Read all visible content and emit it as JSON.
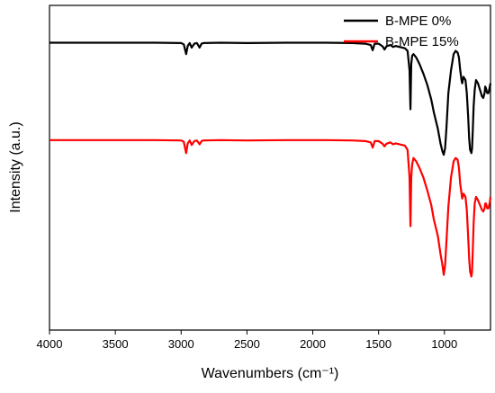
{
  "chart_data": {
    "type": "line",
    "title": "",
    "xlabel": "Wavenumbers (cm⁻¹)",
    "ylabel": "Intensity (a.u.)",
    "xlim": [
      4000,
      650
    ],
    "x_reversed": true,
    "ylim": [
      0,
      1
    ],
    "y_ticks_shown": false,
    "x_ticks": [
      4000,
      3500,
      3000,
      2500,
      2000,
      1500,
      1000
    ],
    "x_tick_labels": [
      "4000",
      "3500",
      "3000",
      "2500",
      "2000",
      "1500",
      "1000"
    ],
    "grid": false,
    "legend_position": "top-right",
    "series": [
      {
        "name": "B-MPE 0%",
        "color": "#000000",
        "x": [
          4000,
          3200,
          3000,
          2980,
          2962,
          2950,
          2935,
          2920,
          2900,
          2880,
          2860,
          2845,
          2830,
          2700,
          2500,
          2200,
          1900,
          1700,
          1600,
          1560,
          1545,
          1530,
          1500,
          1470,
          1455,
          1440,
          1410,
          1390,
          1370,
          1300,
          1280,
          1265,
          1258,
          1252,
          1245,
          1235,
          1215,
          1190,
          1160,
          1130,
          1100,
          1080,
          1050,
          1030,
          1015,
          1005,
          995,
          985,
          970,
          950,
          930,
          915,
          900,
          890,
          880,
          870,
          865,
          855,
          840,
          830,
          820,
          812,
          805,
          795,
          790,
          785,
          778,
          770,
          760,
          745,
          730,
          715,
          705,
          695,
          690,
          685,
          675,
          665,
          655,
          650
        ],
        "y": [
          0.885,
          0.885,
          0.884,
          0.88,
          0.85,
          0.875,
          0.884,
          0.87,
          0.882,
          0.884,
          0.87,
          0.882,
          0.884,
          0.885,
          0.884,
          0.885,
          0.885,
          0.884,
          0.882,
          0.878,
          0.862,
          0.882,
          0.882,
          0.874,
          0.864,
          0.874,
          0.878,
          0.872,
          0.875,
          0.868,
          0.86,
          0.8,
          0.68,
          0.82,
          0.845,
          0.85,
          0.84,
          0.82,
          0.79,
          0.755,
          0.71,
          0.67,
          0.62,
          0.575,
          0.55,
          0.54,
          0.56,
          0.62,
          0.73,
          0.8,
          0.85,
          0.86,
          0.855,
          0.84,
          0.8,
          0.77,
          0.76,
          0.78,
          0.77,
          0.73,
          0.66,
          0.59,
          0.555,
          0.545,
          0.56,
          0.61,
          0.69,
          0.74,
          0.77,
          0.76,
          0.74,
          0.72,
          0.715,
          0.73,
          0.75,
          0.745,
          0.73,
          0.73,
          0.75,
          0.76
        ]
      },
      {
        "name": "B-MPE 15%",
        "color": "#ff0000",
        "x": [
          4000,
          3200,
          3000,
          2980,
          2962,
          2950,
          2935,
          2920,
          2900,
          2880,
          2860,
          2845,
          2830,
          2700,
          2500,
          2200,
          1900,
          1700,
          1600,
          1560,
          1545,
          1530,
          1500,
          1470,
          1455,
          1440,
          1410,
          1390,
          1370,
          1300,
          1280,
          1265,
          1258,
          1252,
          1245,
          1235,
          1215,
          1190,
          1160,
          1130,
          1100,
          1080,
          1050,
          1030,
          1015,
          1005,
          995,
          985,
          970,
          950,
          930,
          915,
          900,
          890,
          880,
          870,
          865,
          855,
          840,
          830,
          820,
          812,
          805,
          795,
          790,
          785,
          778,
          770,
          760,
          745,
          730,
          715,
          705,
          695,
          690,
          685,
          675,
          665,
          655,
          650
        ],
        "y": [
          0.585,
          0.585,
          0.584,
          0.58,
          0.545,
          0.575,
          0.584,
          0.57,
          0.582,
          0.584,
          0.572,
          0.582,
          0.584,
          0.585,
          0.584,
          0.585,
          0.585,
          0.584,
          0.582,
          0.578,
          0.562,
          0.582,
          0.582,
          0.574,
          0.566,
          0.574,
          0.578,
          0.572,
          0.575,
          0.568,
          0.555,
          0.47,
          0.32,
          0.47,
          0.51,
          0.53,
          0.52,
          0.5,
          0.47,
          0.43,
          0.385,
          0.34,
          0.29,
          0.235,
          0.2,
          0.17,
          0.2,
          0.27,
          0.38,
          0.47,
          0.52,
          0.53,
          0.525,
          0.5,
          0.45,
          0.42,
          0.405,
          0.42,
          0.41,
          0.37,
          0.29,
          0.22,
          0.18,
          0.165,
          0.18,
          0.24,
          0.33,
          0.39,
          0.41,
          0.4,
          0.385,
          0.37,
          0.365,
          0.375,
          0.39,
          0.39,
          0.375,
          0.375,
          0.395,
          0.41
        ]
      }
    ]
  }
}
